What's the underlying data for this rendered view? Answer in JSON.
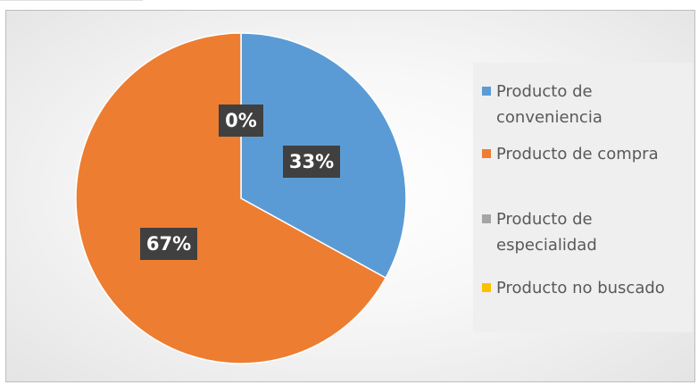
{
  "chart_data": {
    "type": "pie",
    "title": "",
    "series": [
      {
        "name": "Producto de conveniencia",
        "value": 33,
        "label": "33%",
        "color": "#5b9bd5"
      },
      {
        "name": "Producto de compra",
        "value": 67,
        "label": "67%",
        "color": "#ed7d31"
      },
      {
        "name": "Producto de especialidad",
        "value": 0,
        "label": "",
        "color": "#a5a5a5"
      },
      {
        "name": "Producto no buscado",
        "value": 0,
        "label": "0%",
        "color": "#ffc000"
      }
    ],
    "legend_position": "right",
    "start_angle": "12 o'clock",
    "direction": "clockwise"
  }
}
